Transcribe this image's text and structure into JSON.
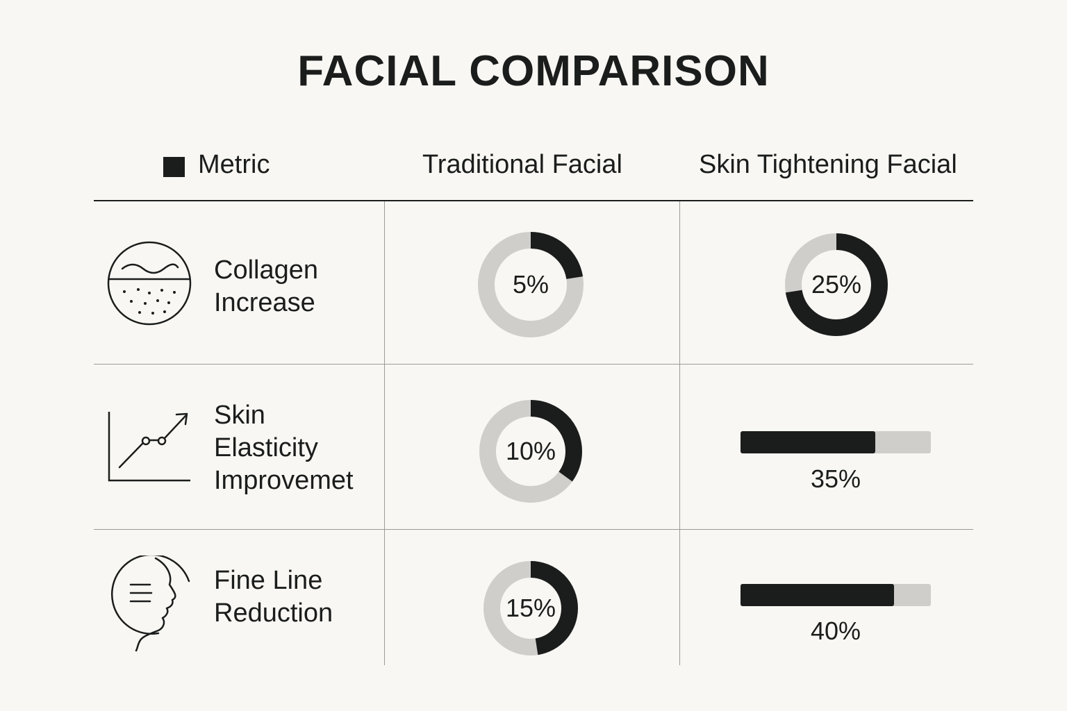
{
  "title": "FACIAL COMPARISON",
  "headers": {
    "metric": "Metric",
    "traditional": "Traditional Facial",
    "skin": "Skin Tightening Facial"
  },
  "colors": {
    "dark": "#1b1d1c",
    "light": "#cfcecb",
    "background": "#f8f7f3"
  },
  "rows": [
    {
      "label_lines": [
        "Collagen",
        "Increase"
      ],
      "icon": "skin-layers-icon",
      "traditional": {
        "label": "5%",
        "value": 5
      },
      "skin": {
        "label": "25%",
        "value": 25,
        "display": "donut"
      }
    },
    {
      "label_lines": [
        "Skin",
        "Elasticity",
        "Improvemet"
      ],
      "icon": "trend-up-chart-icon",
      "traditional": {
        "label": "10%",
        "value": 10
      },
      "skin": {
        "label": "35%",
        "value": 35,
        "display": "bar"
      }
    },
    {
      "label_lines": [
        "Fine Line",
        "Reduction"
      ],
      "icon": "face-profile-icon",
      "traditional": {
        "label": "15%",
        "value": 15
      },
      "skin": {
        "label": "40%",
        "value": 40,
        "display": "bar"
      }
    }
  ],
  "chart_data": {
    "type": "table",
    "title": "FACIAL COMPARISON",
    "columns": [
      "Metric",
      "Traditional Facial",
      "Skin Tightening Facial"
    ],
    "categories": [
      "Collagen Increase",
      "Skin Elasticity Improvemet",
      "Fine Line Reduction"
    ],
    "series": [
      {
        "name": "Traditional Facial",
        "values": [
          5,
          10,
          15
        ]
      },
      {
        "name": "Skin Tightening Facial",
        "values": [
          25,
          35,
          40
        ]
      }
    ],
    "unit": "%"
  }
}
